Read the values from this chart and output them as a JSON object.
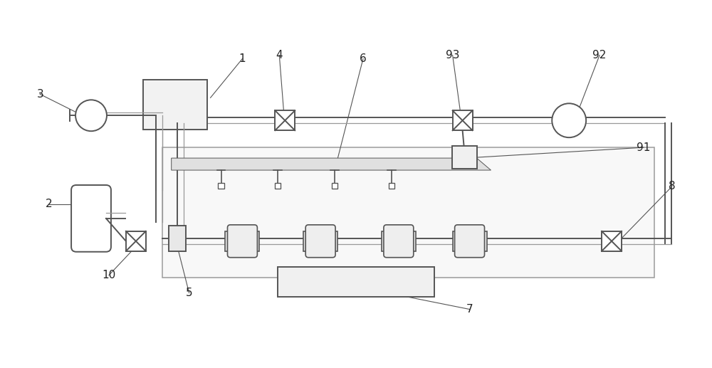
{
  "bg_color": "#ffffff",
  "lc": "#555555",
  "lc2": "#999999",
  "lc_light": "#bbbbbb",
  "figsize": [
    10.0,
    5.17
  ],
  "dpi": 100
}
